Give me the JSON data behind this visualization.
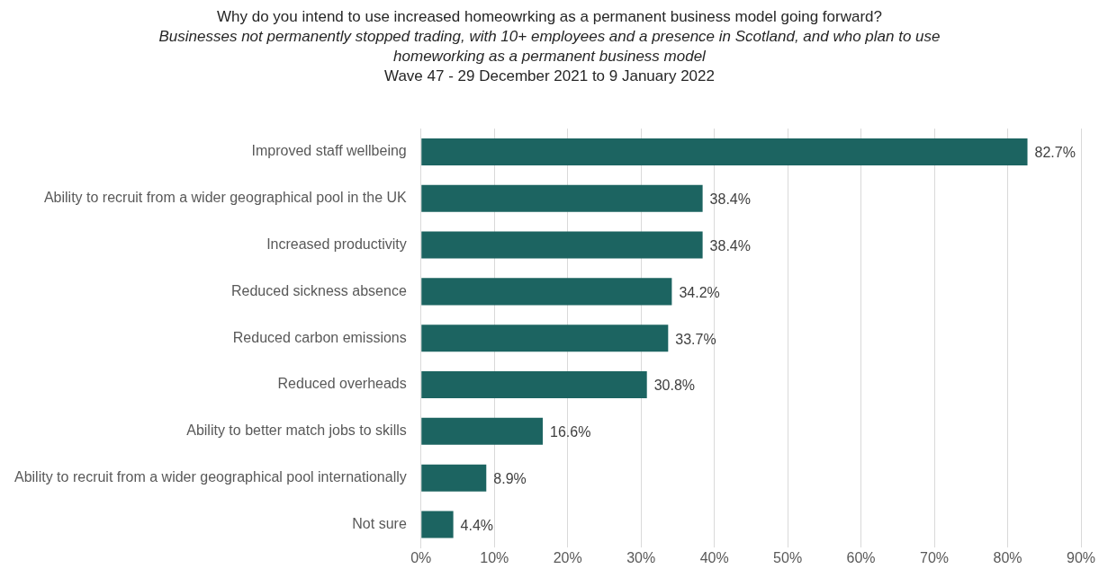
{
  "chart_data": {
    "type": "bar",
    "orientation": "horizontal",
    "title": "Why do you intend to use increased homeowrking as a permanent business model going forward?",
    "subtitle": "Businesses not permanently stopped trading, with 10+ employees and a presence in Scotland, and who plan to use homeworking as a permanent business model",
    "annotations": [
      "Wave 47 - 29 December 2021 to 9 January 2022"
    ],
    "categories": [
      "Improved staff wellbeing",
      "Ability to recruit from a wider geographical pool in the UK",
      "Increased productivity",
      "Reduced sickness absence",
      "Reduced carbon emissions",
      "Reduced overheads",
      "Ability to better match jobs to skills",
      "Ability to recruit from a wider geographical pool internationally",
      "Not sure"
    ],
    "values": [
      82.7,
      38.4,
      38.4,
      34.2,
      33.7,
      30.8,
      16.6,
      8.9,
      4.4
    ],
    "value_labels": [
      "82.7%",
      "38.4%",
      "38.4%",
      "34.2%",
      "33.7%",
      "30.8%",
      "16.6%",
      "8.9%",
      "4.4%"
    ],
    "color": "#1c6461",
    "xlim": [
      0,
      90
    ],
    "xticks": [
      {
        "value": 0,
        "label": "0%"
      },
      {
        "value": 10,
        "label": "10%"
      },
      {
        "value": 20,
        "label": "20%"
      },
      {
        "value": 30,
        "label": "30%"
      },
      {
        "value": 40,
        "label": "40%"
      },
      {
        "value": 50,
        "label": "50%"
      },
      {
        "value": 60,
        "label": "60%"
      },
      {
        "value": 70,
        "label": "70%"
      },
      {
        "value": 80,
        "label": "80%"
      },
      {
        "value": 90,
        "label": "90%"
      }
    ],
    "grid": "x",
    "legend": false
  }
}
